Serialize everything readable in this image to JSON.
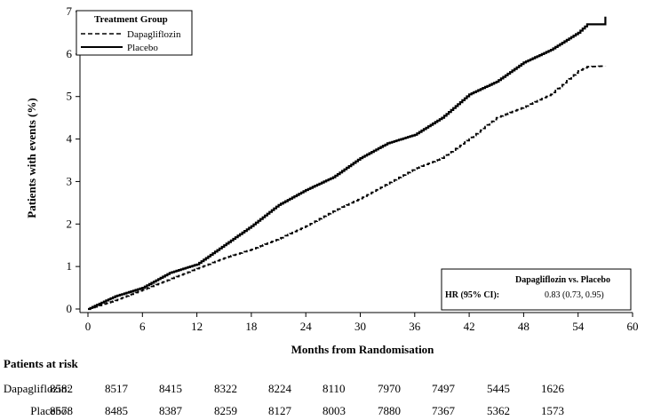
{
  "chart_data": {
    "type": "line",
    "xlabel": "Months from Randomisation",
    "ylabel": "Patients with events (%)",
    "xlim": [
      0,
      60
    ],
    "ylim": [
      0,
      7
    ],
    "x_ticks": [
      0,
      6,
      12,
      18,
      24,
      30,
      36,
      42,
      48,
      54,
      60
    ],
    "y_ticks": [
      0,
      1,
      2,
      3,
      4,
      5,
      6,
      7
    ],
    "legend": {
      "title": "Treatment Group",
      "position": "top-left",
      "entries": [
        "Dapagliflozin",
        "Placebo"
      ]
    },
    "series": [
      {
        "name": "Dapagliflozin",
        "style": "dashed",
        "points": [
          [
            0,
            0
          ],
          [
            3,
            0.2
          ],
          [
            6,
            0.45
          ],
          [
            9,
            0.7
          ],
          [
            12,
            0.95
          ],
          [
            15,
            1.2
          ],
          [
            18,
            1.4
          ],
          [
            21,
            1.65
          ],
          [
            24,
            1.95
          ],
          [
            27,
            2.3
          ],
          [
            30,
            2.6
          ],
          [
            33,
            2.95
          ],
          [
            36,
            3.3
          ],
          [
            39,
            3.55
          ],
          [
            42,
            4.0
          ],
          [
            45,
            4.5
          ],
          [
            48,
            4.75
          ],
          [
            51,
            5.05
          ],
          [
            54,
            5.6
          ],
          [
            55,
            5.7
          ],
          [
            57,
            5.72
          ]
        ]
      },
      {
        "name": "Placebo",
        "style": "solid",
        "points": [
          [
            0,
            0
          ],
          [
            3,
            0.3
          ],
          [
            6,
            0.5
          ],
          [
            9,
            0.85
          ],
          [
            12,
            1.05
          ],
          [
            15,
            1.5
          ],
          [
            18,
            1.95
          ],
          [
            21,
            2.45
          ],
          [
            24,
            2.8
          ],
          [
            27,
            3.1
          ],
          [
            30,
            3.55
          ],
          [
            33,
            3.9
          ],
          [
            36,
            4.1
          ],
          [
            39,
            4.5
          ],
          [
            42,
            5.05
          ],
          [
            45,
            5.35
          ],
          [
            48,
            5.8
          ],
          [
            51,
            6.1
          ],
          [
            54,
            6.5
          ],
          [
            55,
            6.7
          ],
          [
            57,
            6.7
          ],
          [
            57,
            6.88
          ]
        ]
      }
    ],
    "annotation": {
      "header": "Dapagliflozin vs. Placebo",
      "label": "HR (95% CI):",
      "value": "0.83 (0.73, 0.95)",
      "position": "bottom-right"
    }
  },
  "risk_table": {
    "title": "Patients at risk",
    "rows": [
      {
        "label": "Dapagliflozin:",
        "values": [
          "8582",
          "8517",
          "8415",
          "8322",
          "8224",
          "8110",
          "7970",
          "7497",
          "5445",
          "1626"
        ]
      },
      {
        "label": "Placebo:",
        "values": [
          "8578",
          "8485",
          "8387",
          "8259",
          "8127",
          "8003",
          "7880",
          "7367",
          "5362",
          "1573"
        ]
      }
    ]
  }
}
